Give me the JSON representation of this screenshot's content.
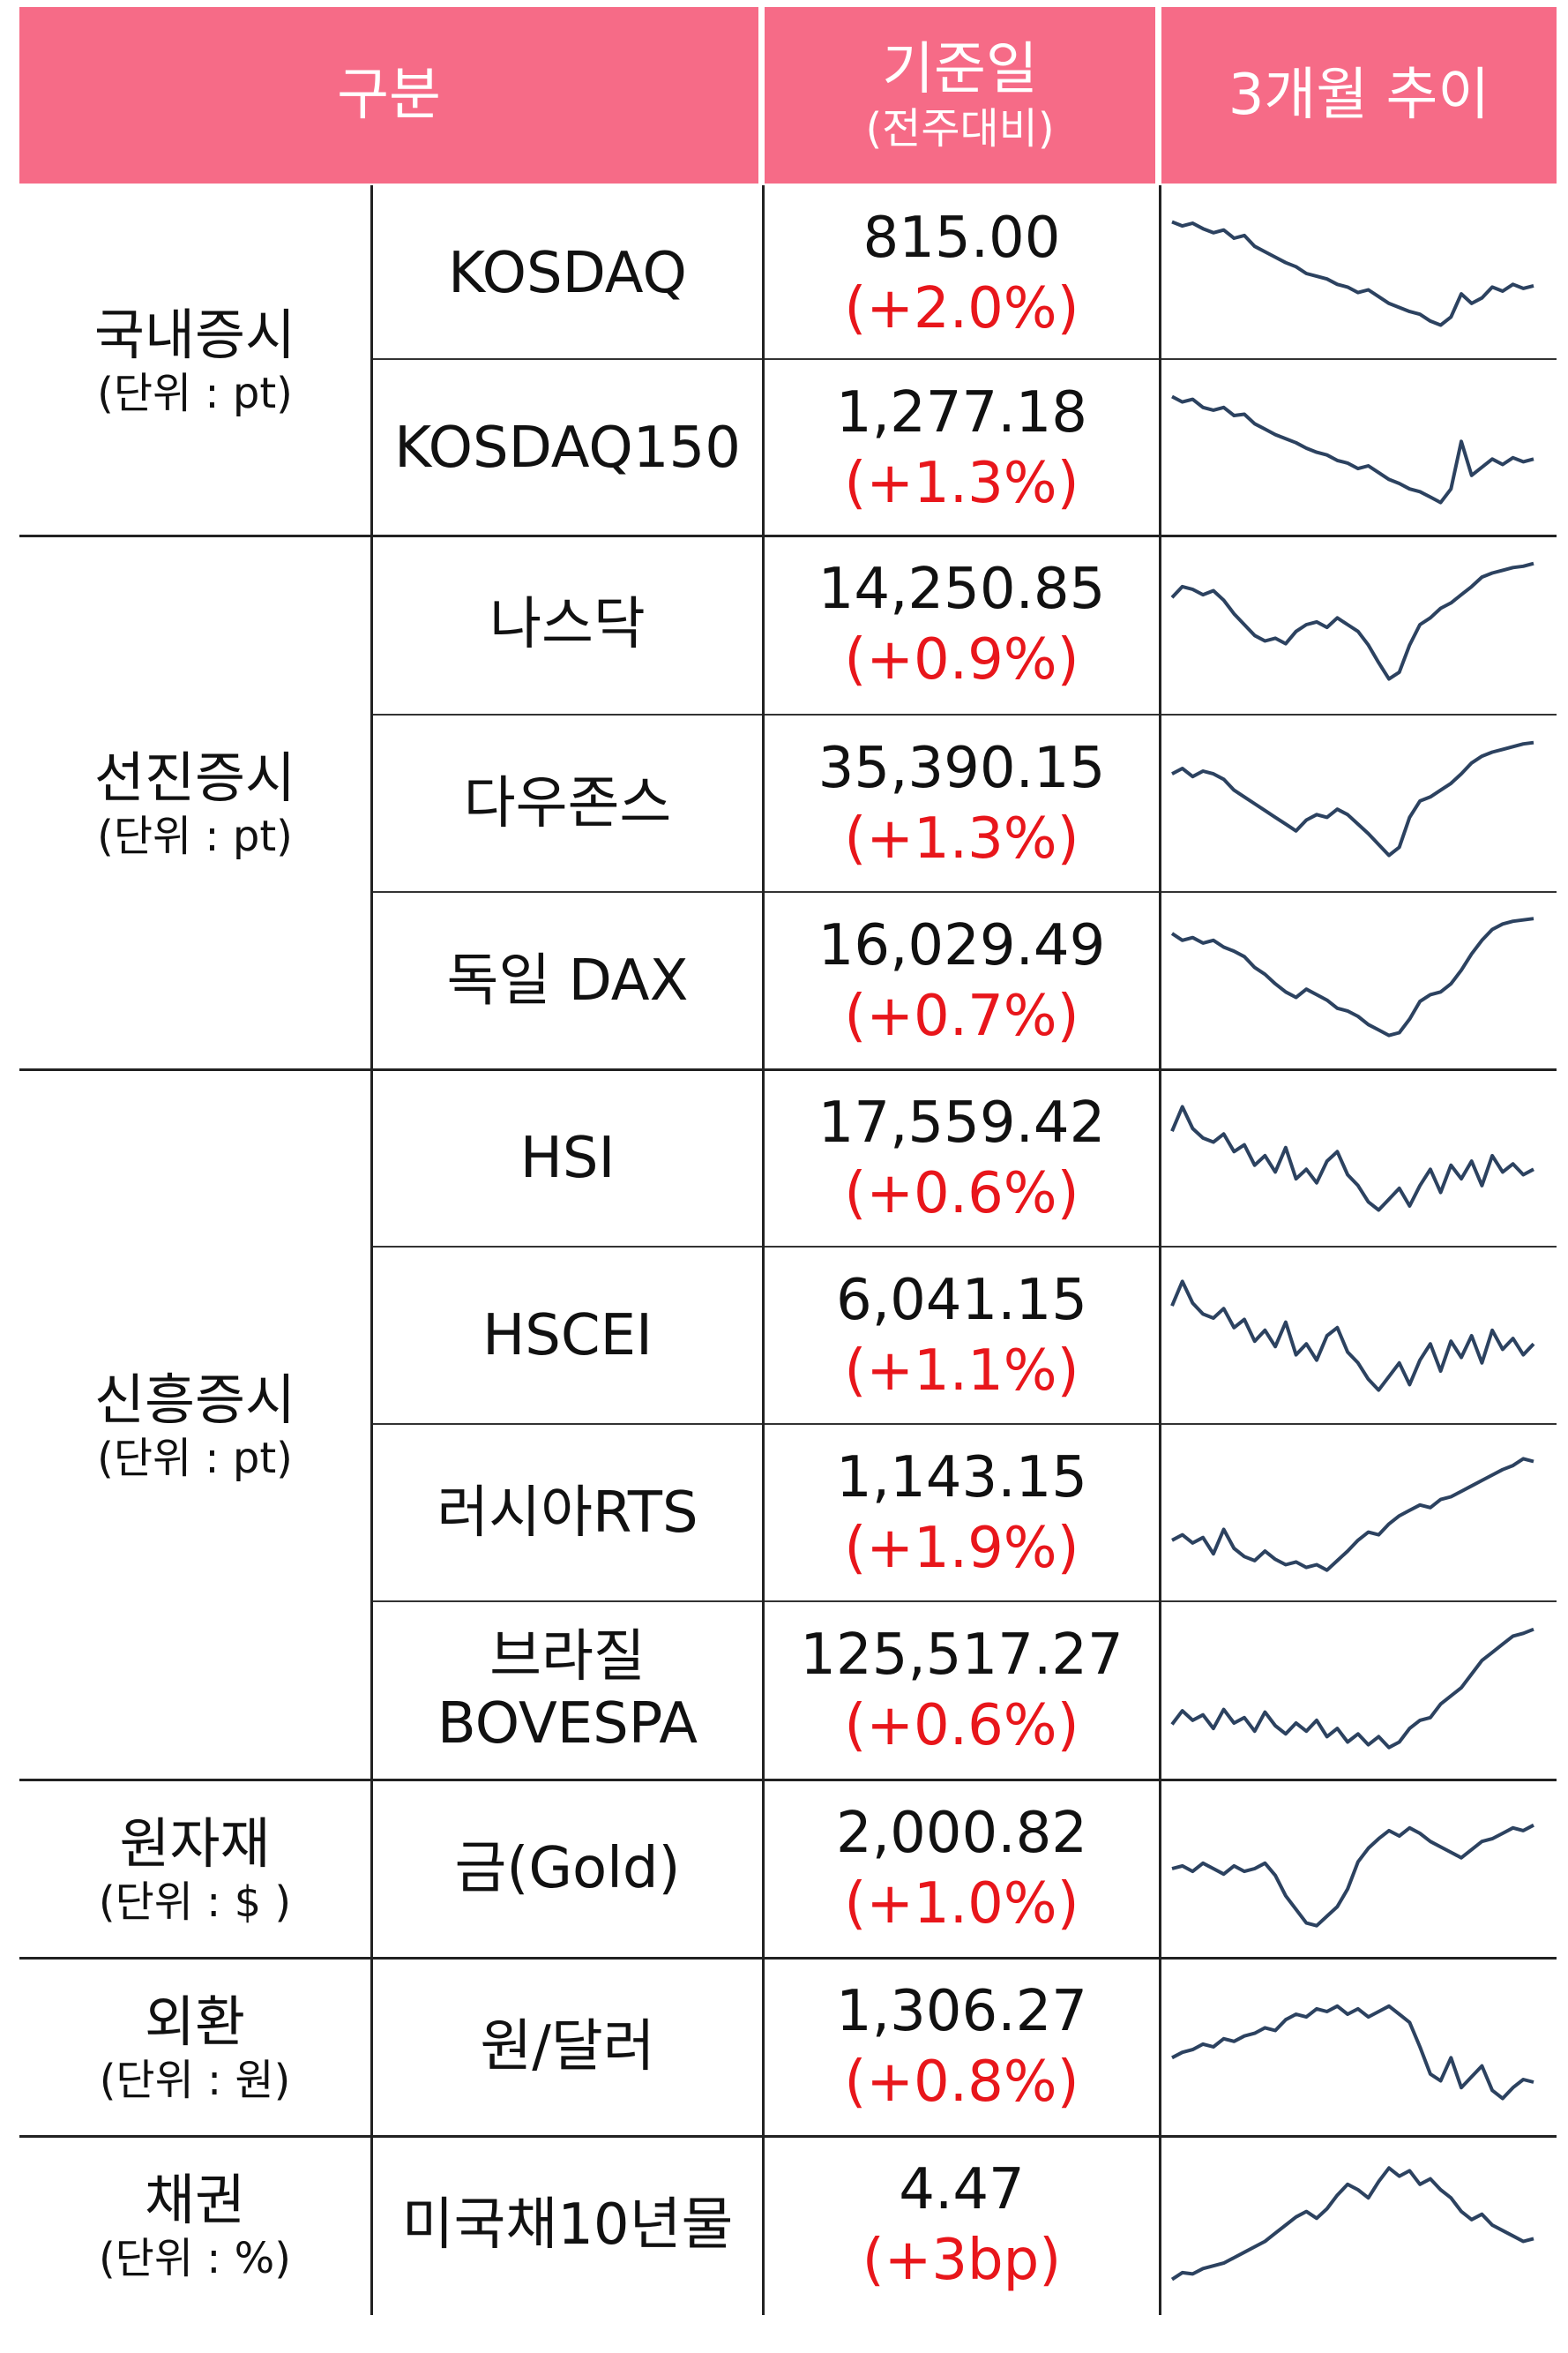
{
  "header": {
    "category": "구분",
    "base_date": "기준일",
    "base_date_sub": "(전주대비)",
    "trend": "3개월 추이"
  },
  "groups": [
    {
      "name": "국내증시",
      "unit": "(단위 : pt)"
    },
    {
      "name": "선진증시",
      "unit": "(단위 : pt)"
    },
    {
      "name": "신흥증시",
      "unit": "(단위 : pt)"
    },
    {
      "name": "원자재",
      "unit": "(단위 : $ )"
    },
    {
      "name": "외환",
      "unit": "(단위 : 원)"
    },
    {
      "name": "채권",
      "unit": "(단위 : %)"
    }
  ],
  "rows": [
    {
      "name": "KOSDAQ",
      "value": "815.00",
      "change": "(+2.0%)",
      "trend": [
        0.88,
        0.85,
        0.87,
        0.83,
        0.8,
        0.82,
        0.76,
        0.78,
        0.7,
        0.66,
        0.62,
        0.58,
        0.55,
        0.5,
        0.48,
        0.46,
        0.42,
        0.4,
        0.36,
        0.38,
        0.33,
        0.28,
        0.25,
        0.22,
        0.2,
        0.15,
        0.12,
        0.18,
        0.35,
        0.28,
        0.32,
        0.4,
        0.37,
        0.42,
        0.39,
        0.41
      ]
    },
    {
      "name": "KOSDAQ150",
      "value": "1,277.18",
      "change": "(+1.3%)",
      "trend": [
        0.88,
        0.84,
        0.86,
        0.8,
        0.78,
        0.8,
        0.74,
        0.75,
        0.68,
        0.64,
        0.6,
        0.57,
        0.54,
        0.5,
        0.47,
        0.45,
        0.41,
        0.39,
        0.35,
        0.37,
        0.32,
        0.27,
        0.24,
        0.2,
        0.18,
        0.14,
        0.1,
        0.2,
        0.55,
        0.3,
        0.36,
        0.42,
        0.38,
        0.43,
        0.4,
        0.42
      ]
    },
    {
      "name": "나스닥",
      "value": "14,250.85",
      "change": "(+0.9%)",
      "trend": [
        0.7,
        0.78,
        0.76,
        0.72,
        0.75,
        0.68,
        0.58,
        0.5,
        0.42,
        0.38,
        0.4,
        0.36,
        0.45,
        0.5,
        0.52,
        0.48,
        0.55,
        0.5,
        0.45,
        0.35,
        0.22,
        0.1,
        0.15,
        0.35,
        0.5,
        0.55,
        0.62,
        0.66,
        0.72,
        0.78,
        0.85,
        0.88,
        0.9,
        0.92,
        0.93,
        0.95
      ]
    },
    {
      "name": "다우존스",
      "value": "35,390.15",
      "change": "(+1.3%)",
      "trend": [
        0.72,
        0.76,
        0.7,
        0.74,
        0.72,
        0.68,
        0.6,
        0.55,
        0.5,
        0.45,
        0.4,
        0.35,
        0.3,
        0.38,
        0.42,
        0.4,
        0.46,
        0.42,
        0.35,
        0.28,
        0.2,
        0.12,
        0.18,
        0.4,
        0.52,
        0.55,
        0.6,
        0.65,
        0.72,
        0.8,
        0.85,
        0.88,
        0.9,
        0.92,
        0.94,
        0.95
      ]
    },
    {
      "name": "독일 DAX",
      "value": "16,029.49",
      "change": "(+0.7%)",
      "trend": [
        0.85,
        0.8,
        0.82,
        0.78,
        0.8,
        0.75,
        0.72,
        0.68,
        0.6,
        0.55,
        0.48,
        0.42,
        0.38,
        0.44,
        0.4,
        0.36,
        0.3,
        0.28,
        0.24,
        0.18,
        0.14,
        0.1,
        0.12,
        0.22,
        0.35,
        0.4,
        0.42,
        0.48,
        0.58,
        0.7,
        0.8,
        0.88,
        0.92,
        0.94,
        0.95,
        0.96
      ]
    },
    {
      "name": "HSI",
      "value": "17,559.42",
      "change": "(+0.6%)",
      "trend": [
        0.7,
        0.88,
        0.72,
        0.65,
        0.62,
        0.68,
        0.55,
        0.6,
        0.45,
        0.52,
        0.4,
        0.58,
        0.35,
        0.42,
        0.32,
        0.48,
        0.55,
        0.38,
        0.3,
        0.18,
        0.12,
        0.2,
        0.28,
        0.15,
        0.3,
        0.42,
        0.25,
        0.45,
        0.35,
        0.48,
        0.3,
        0.52,
        0.4,
        0.46,
        0.38,
        0.42
      ]
    },
    {
      "name": "HSCEI",
      "value": "6,041.15",
      "change": "(+1.1%)",
      "trend": [
        0.72,
        0.9,
        0.74,
        0.66,
        0.63,
        0.7,
        0.56,
        0.62,
        0.46,
        0.54,
        0.42,
        0.6,
        0.36,
        0.44,
        0.32,
        0.5,
        0.56,
        0.38,
        0.3,
        0.18,
        0.1,
        0.2,
        0.3,
        0.14,
        0.32,
        0.44,
        0.24,
        0.46,
        0.34,
        0.5,
        0.3,
        0.54,
        0.4,
        0.48,
        0.36,
        0.44
      ]
    },
    {
      "name": "러시아RTS",
      "value": "1,143.15",
      "change": "(+1.9%)",
      "trend": [
        0.3,
        0.34,
        0.28,
        0.32,
        0.2,
        0.38,
        0.24,
        0.18,
        0.15,
        0.22,
        0.16,
        0.12,
        0.14,
        0.1,
        0.12,
        0.08,
        0.15,
        0.22,
        0.3,
        0.36,
        0.34,
        0.42,
        0.48,
        0.52,
        0.56,
        0.54,
        0.6,
        0.62,
        0.66,
        0.7,
        0.74,
        0.78,
        0.82,
        0.85,
        0.9,
        0.88
      ]
    },
    {
      "name": "브라질\nBOVESPA",
      "value": "125,517.27",
      "change": "(+0.6%)",
      "trend": [
        0.25,
        0.35,
        0.28,
        0.32,
        0.22,
        0.36,
        0.26,
        0.3,
        0.2,
        0.34,
        0.24,
        0.18,
        0.26,
        0.2,
        0.28,
        0.16,
        0.22,
        0.12,
        0.18,
        0.1,
        0.16,
        0.08,
        0.12,
        0.22,
        0.28,
        0.3,
        0.4,
        0.46,
        0.52,
        0.62,
        0.72,
        0.78,
        0.84,
        0.9,
        0.92,
        0.95
      ]
    },
    {
      "name": "금(Gold)",
      "value": "2,000.82",
      "change": "(+1.0%)",
      "trend": [
        0.5,
        0.52,
        0.48,
        0.54,
        0.5,
        0.46,
        0.52,
        0.48,
        0.5,
        0.54,
        0.45,
        0.3,
        0.2,
        0.1,
        0.08,
        0.15,
        0.22,
        0.35,
        0.55,
        0.65,
        0.72,
        0.78,
        0.74,
        0.8,
        0.76,
        0.7,
        0.66,
        0.62,
        0.58,
        0.64,
        0.7,
        0.72,
        0.76,
        0.8,
        0.78,
        0.82
      ]
    },
    {
      "name": "원/달러",
      "value": "1,306.27",
      "change": "(+0.8%)",
      "trend": [
        0.42,
        0.46,
        0.48,
        0.52,
        0.5,
        0.56,
        0.54,
        0.58,
        0.6,
        0.64,
        0.62,
        0.7,
        0.74,
        0.72,
        0.78,
        0.76,
        0.8,
        0.74,
        0.78,
        0.72,
        0.76,
        0.8,
        0.74,
        0.68,
        0.5,
        0.3,
        0.25,
        0.42,
        0.2,
        0.28,
        0.36,
        0.18,
        0.12,
        0.2,
        0.26,
        0.24
      ]
    },
    {
      "name": "미국채10년물",
      "value": "4.47",
      "change": "(+3bp)",
      "trend": [
        0.1,
        0.15,
        0.14,
        0.18,
        0.2,
        0.22,
        0.26,
        0.3,
        0.34,
        0.38,
        0.44,
        0.5,
        0.56,
        0.6,
        0.55,
        0.62,
        0.72,
        0.8,
        0.76,
        0.7,
        0.82,
        0.92,
        0.86,
        0.9,
        0.8,
        0.84,
        0.76,
        0.7,
        0.6,
        0.54,
        0.58,
        0.5,
        0.46,
        0.42,
        0.38,
        0.4
      ]
    }
  ]
}
